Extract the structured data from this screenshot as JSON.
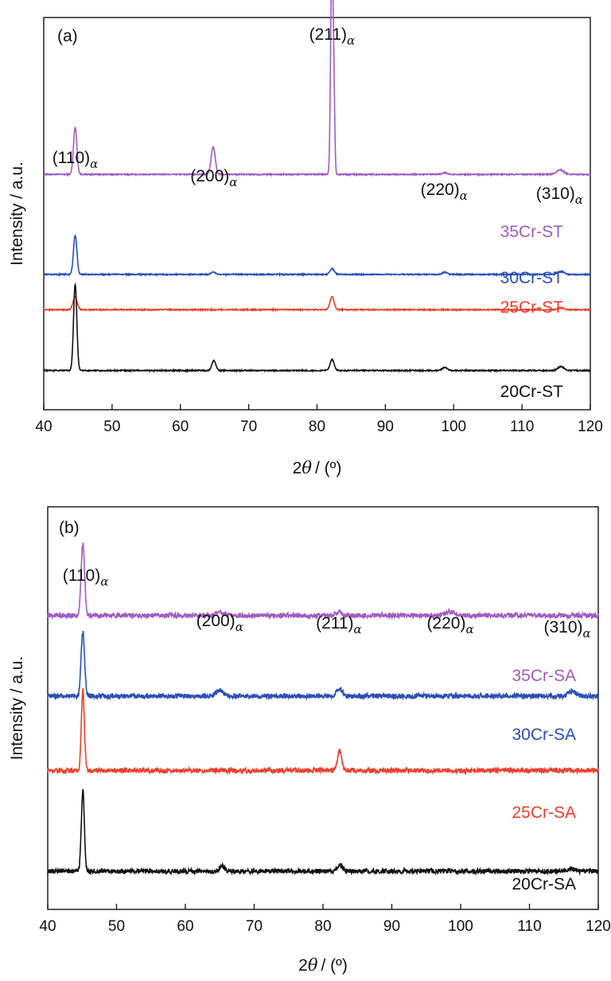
{
  "chart_data": [
    {
      "type": "line",
      "panel_label": "(a)",
      "xlabel_prefix": "2",
      "xlabel_symbol": "θ",
      "xlabel_suffix": "/ (º)",
      "ylabel": "Intensity / a.u.",
      "xlim": [
        40,
        120
      ],
      "x_ticks": [
        "40",
        "50",
        "60",
        "70",
        "80",
        "90",
        "100",
        "110",
        "120"
      ],
      "grid": false,
      "peak_labels": [
        {
          "text": "(110)",
          "sub": "α",
          "x": 44.6
        },
        {
          "text": "(200)",
          "sub": "α",
          "x": 64.9
        },
        {
          "text": "(211)",
          "sub": "α",
          "x": 82.2
        },
        {
          "text": "(220)",
          "sub": "α",
          "x": 98.6
        },
        {
          "text": "(310)",
          "sub": "α",
          "x": 115.5
        }
      ],
      "series": [
        {
          "name": "35Cr-ST",
          "color": "#a05cbf",
          "baseline": 0.6,
          "noise": 0.0015,
          "peaks": [
            [
              44.6,
              0.12,
              0.25
            ],
            [
              64.8,
              0.07,
              0.3
            ],
            [
              82.15,
              0.52,
              0.17
            ],
            [
              82.45,
              0.22,
              0.14
            ],
            [
              98.7,
              0.004,
              0.4
            ],
            [
              115.6,
              0.012,
              0.5
            ]
          ]
        },
        {
          "name": "30Cr-ST",
          "color": "#2a4fb5",
          "baseline": 0.345,
          "noise": 0.0015,
          "peaks": [
            [
              44.6,
              0.1,
              0.25
            ],
            [
              64.8,
              0.006,
              0.3
            ],
            [
              82.2,
              0.015,
              0.3
            ],
            [
              98.7,
              0.006,
              0.35
            ],
            [
              115.7,
              0.008,
              0.45
            ]
          ]
        },
        {
          "name": "25Cr-ST",
          "color": "#e8412d",
          "baseline": 0.255,
          "noise": 0.0015,
          "peaks": [
            [
              44.6,
              0.033,
              0.3
            ],
            [
              82.2,
              0.033,
              0.3
            ],
            [
              115.7,
              0.005,
              0.4
            ]
          ]
        },
        {
          "name": "20Cr-ST",
          "color": "#111111",
          "baseline": 0.1,
          "noise": 0.0015,
          "peaks": [
            [
              44.6,
              0.22,
              0.24
            ],
            [
              64.9,
              0.025,
              0.3
            ],
            [
              82.2,
              0.028,
              0.3
            ],
            [
              98.7,
              0.008,
              0.35
            ],
            [
              115.7,
              0.01,
              0.45
            ]
          ]
        }
      ]
    },
    {
      "type": "line",
      "panel_label": "(b)",
      "xlabel_prefix": "2",
      "xlabel_symbol": "θ",
      "xlabel_suffix": "/ (º)",
      "ylabel": "Intensity / a.u.",
      "xlim": [
        40,
        120
      ],
      "x_ticks": [
        "40",
        "50",
        "60",
        "70",
        "80",
        "90",
        "100",
        "110",
        "120"
      ],
      "grid": false,
      "peak_labels": [
        {
          "text": "(110)",
          "sub": "α",
          "x": 45.5
        },
        {
          "text": "(200)",
          "sub": "α",
          "x": 65.0
        },
        {
          "text": "(211)",
          "sub": "α",
          "x": 82.3
        },
        {
          "text": "(220)",
          "sub": "α",
          "x": 98.5
        },
        {
          "text": "(310)",
          "sub": "α",
          "x": 115.5
        }
      ],
      "series": [
        {
          "name": "35Cr-SA",
          "color": "#a05cbf",
          "baseline": 0.73,
          "noise": 0.006,
          "peaks": [
            [
              45.1,
              0.18,
              0.25
            ],
            [
              65.0,
              0.008,
              0.5
            ],
            [
              82.4,
              0.01,
              0.4
            ],
            [
              98.5,
              0.01,
              0.6
            ]
          ]
        },
        {
          "name": "30Cr-SA",
          "color": "#2a4fb5",
          "baseline": 0.53,
          "noise": 0.006,
          "peaks": [
            [
              45.1,
              0.16,
              0.25
            ],
            [
              65.0,
              0.015,
              0.5
            ],
            [
              82.4,
              0.018,
              0.4
            ],
            [
              116.2,
              0.012,
              0.5
            ]
          ]
        },
        {
          "name": "25Cr-SA",
          "color": "#e8412d",
          "baseline": 0.345,
          "noise": 0.006,
          "peaks": [
            [
              45.1,
              0.2,
              0.22
            ],
            [
              82.4,
              0.05,
              0.3
            ]
          ]
        },
        {
          "name": "20Cr-SA",
          "color": "#111111",
          "baseline": 0.095,
          "noise": 0.006,
          "peaks": [
            [
              45.1,
              0.2,
              0.22
            ],
            [
              65.3,
              0.012,
              0.4
            ],
            [
              82.5,
              0.015,
              0.35
            ],
            [
              116.0,
              0.006,
              0.5
            ]
          ]
        }
      ]
    }
  ]
}
